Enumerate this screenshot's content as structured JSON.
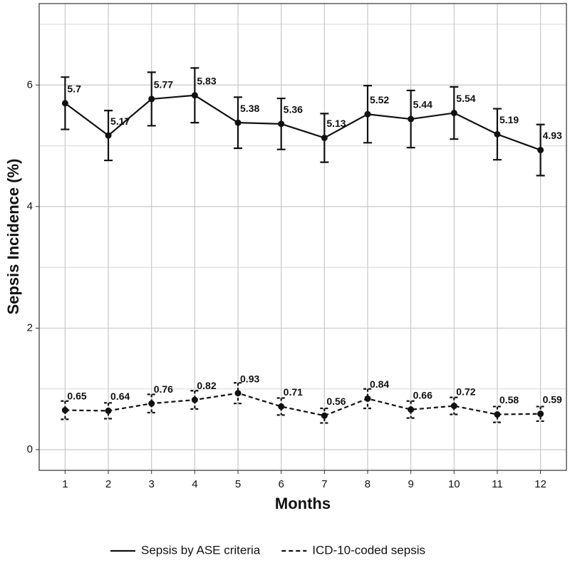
{
  "chart_data": {
    "type": "line",
    "x_label": "Months",
    "y_label": "Sepsis Incidence (%)",
    "x": [
      1,
      2,
      3,
      4,
      5,
      6,
      7,
      8,
      9,
      10,
      11,
      12
    ],
    "xlim": [
      0.4,
      12.6
    ],
    "xticks": [
      1,
      2,
      3,
      4,
      5,
      6,
      7,
      8,
      9,
      10,
      11,
      12
    ],
    "ylim": [
      -0.34,
      7.34
    ],
    "yticks": [
      0,
      2,
      4,
      6
    ],
    "yminor": [
      1,
      3,
      5,
      7
    ],
    "grid": true,
    "legend": "bottom",
    "series": [
      {
        "name": "Sepsis by ASE criteria",
        "color": "#111111",
        "dash": "solid",
        "values": [
          5.7,
          5.17,
          5.77,
          5.83,
          5.38,
          5.36,
          5.13,
          5.52,
          5.44,
          5.54,
          5.19,
          4.93
        ],
        "errors": [
          0.43,
          0.41,
          0.44,
          0.45,
          0.42,
          0.42,
          0.4,
          0.47,
          0.47,
          0.43,
          0.42,
          0.42
        ]
      },
      {
        "name": "ICD-10-coded sepsis",
        "color": "#111111",
        "dash": "dashed",
        "values": [
          0.65,
          0.64,
          0.76,
          0.82,
          0.93,
          0.71,
          0.56,
          0.84,
          0.66,
          0.72,
          0.58,
          0.59
        ],
        "errors": [
          0.15,
          0.13,
          0.15,
          0.15,
          0.17,
          0.14,
          0.12,
          0.16,
          0.14,
          0.14,
          0.13,
          0.12
        ]
      }
    ]
  }
}
